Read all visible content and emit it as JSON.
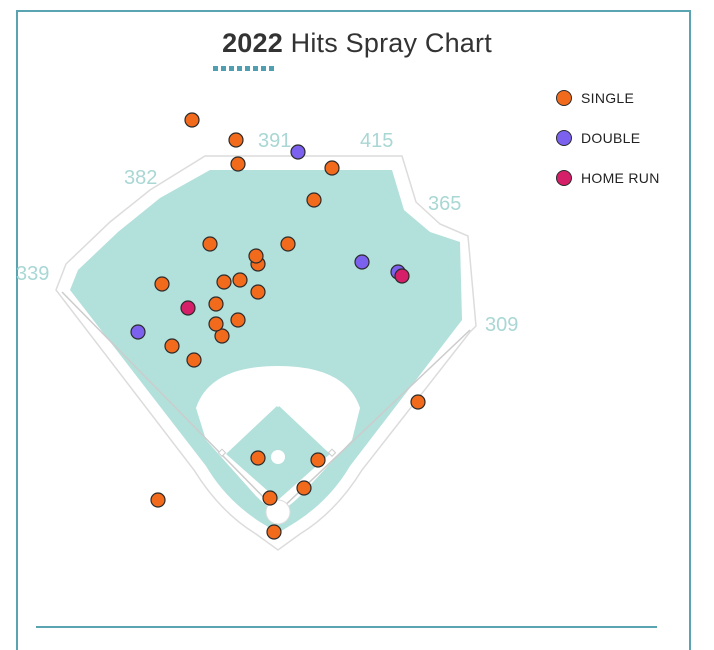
{
  "title": {
    "year": "2022",
    "rest": " Hits Spray Chart"
  },
  "colors": {
    "single": "#f26b1d",
    "double": "#7b61ee",
    "home_run": "#d61f69",
    "field": "#b2e0db",
    "accent": "#5aa3b0"
  },
  "legend": [
    {
      "key": "single",
      "label": "SINGLE"
    },
    {
      "key": "double",
      "label": "DOUBLE"
    },
    {
      "key": "home_run",
      "label": "HOME RUN"
    }
  ],
  "chart_data": {
    "type": "scatter",
    "title": "2022 Hits Spray Chart",
    "fence_distances": [
      "339",
      "382",
      "391",
      "415",
      "365",
      "309"
    ],
    "series": [
      {
        "name": "SINGLE",
        "points": [
          [
            -0.6,
            0.06
          ],
          [
            -0.42,
            0.76
          ],
          [
            -0.53,
            0.83
          ],
          [
            -0.28,
            0.88
          ],
          [
            -0.31,
            0.94
          ],
          [
            -0.2,
            0.96
          ],
          [
            -0.31,
            1.04
          ],
          [
            -0.58,
            1.14
          ],
          [
            -0.27,
            1.15
          ],
          [
            -0.19,
            1.16
          ],
          [
            -0.1,
            1.1
          ],
          [
            0.05,
            1.34
          ],
          [
            0.2,
            0.26
          ],
          [
            0.13,
            0.12
          ],
          [
            -0.04,
            0.07
          ],
          [
            -0.1,
            0.27
          ],
          [
            -0.34,
            1.34
          ],
          [
            -0.1,
            1.24
          ],
          [
            -0.11,
            1.28
          ],
          [
            0.27,
            1.72
          ],
          [
            0.18,
            1.56
          ],
          [
            -0.43,
            1.96
          ],
          [
            -0.21,
            1.86
          ],
          [
            -0.2,
            1.74
          ],
          [
            0.7,
            0.55
          ],
          [
            -0.02,
            -0.1
          ]
        ]
      },
      {
        "name": "DOUBLE",
        "points": [
          [
            0.1,
            1.8
          ],
          [
            -0.7,
            0.9
          ],
          [
            0.42,
            1.25
          ],
          [
            0.6,
            1.2
          ]
        ]
      },
      {
        "name": "HOME RUN",
        "points": [
          [
            -0.45,
            1.02
          ],
          [
            0.62,
            1.18
          ]
        ]
      }
    ]
  }
}
